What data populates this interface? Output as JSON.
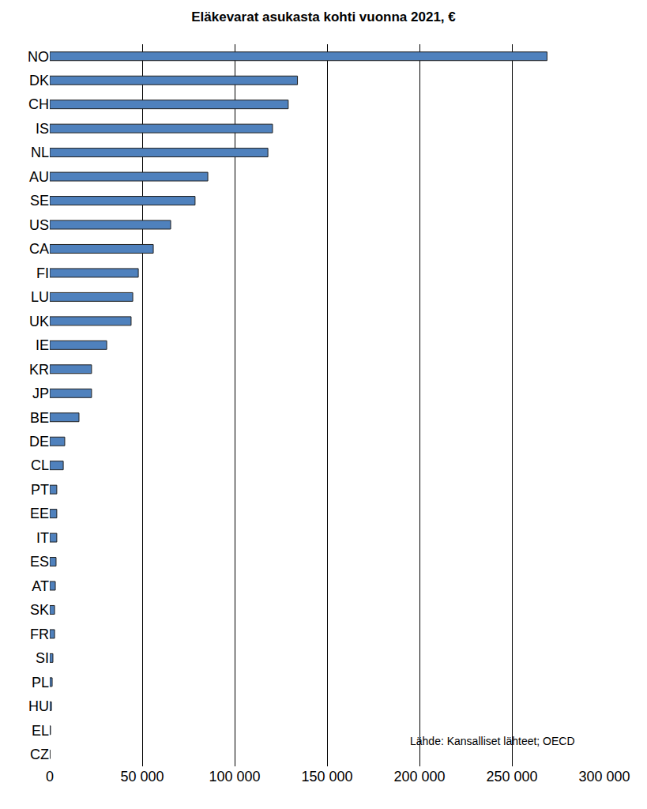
{
  "chart_data": {
    "type": "bar",
    "orientation": "horizontal",
    "title": "Eläkevarat asukasta kohti vuonna 2021, €",
    "categories": [
      "NO",
      "DK",
      "CH",
      "IS",
      "NL",
      "AU",
      "SE",
      "US",
      "CA",
      "FI",
      "LU",
      "UK",
      "IE",
      "KR",
      "JP",
      "BE",
      "DE",
      "CL",
      "PT",
      "EE",
      "IT",
      "ES",
      "AT",
      "SK",
      "FR",
      "SI",
      "PL",
      "HU",
      "EL",
      "CZ"
    ],
    "values": [
      269000,
      134000,
      129000,
      120500,
      118000,
      85500,
      78600,
      65400,
      56000,
      47900,
      44900,
      44000,
      30800,
      22600,
      22600,
      15800,
      8100,
      7300,
      3800,
      3800,
      3800,
      3400,
      3000,
      2600,
      2600,
      1700,
      1300,
      900,
      400,
      100
    ],
    "color": "#4f81bd",
    "xlim": [
      0,
      300000
    ],
    "xticks": [
      0,
      {
        "value": 50000,
        "label": "50 000"
      },
      {
        "value": 100000,
        "label": "100 000"
      },
      {
        "value": 150000,
        "label": "150 000"
      },
      {
        "value": 200000,
        "label": "200 000"
      },
      {
        "value": 250000,
        "label": "250 000"
      },
      {
        "value": 300000,
        "label": "300 000"
      }
    ],
    "grid": true,
    "annotations": [
      {
        "text": "Lähde: Kansalliset lähteet; OECD"
      }
    ]
  }
}
